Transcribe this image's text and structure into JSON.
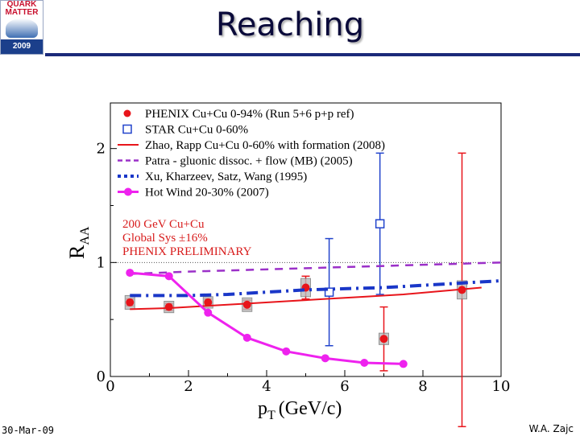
{
  "slide": {
    "title": "Reaching",
    "date": "30-Mar-09",
    "author": "W.A. Zajc",
    "logo": {
      "line1": "QUARK",
      "line2": "MATTER",
      "year": "2009"
    }
  },
  "chart_data": {
    "type": "scatter",
    "xlabel": "p",
    "xlabel_sub": "T",
    "xlabel_unit": "(GeV/c)",
    "ylabel": "R",
    "ylabel_sub": "AA",
    "xlim": [
      0,
      10
    ],
    "ylim": [
      0,
      2.4
    ],
    "xticks": [
      0,
      2,
      4,
      6,
      8,
      10
    ],
    "yticks": [
      0,
      1,
      2
    ],
    "reference_line": 1,
    "annotations": [
      "200 GeV Cu+Cu",
      "Global Sys  ±16%",
      "PHENIX PRELIMINARY"
    ],
    "series": [
      {
        "name": "PHENIX Cu+Cu 0-94% (Run 5+6 p+p ref)",
        "kind": "points",
        "marker": "filled-circle",
        "color": "#e8151b",
        "points": [
          {
            "x": 0.5,
            "y": 0.65,
            "err": 0.03,
            "sys": 0.06
          },
          {
            "x": 1.5,
            "y": 0.61,
            "err": 0.03,
            "sys": 0.05
          },
          {
            "x": 2.5,
            "y": 0.65,
            "err": 0.03,
            "sys": 0.05
          },
          {
            "x": 3.5,
            "y": 0.63,
            "err": 0.04,
            "sys": 0.06
          },
          {
            "x": 5.0,
            "y": 0.78,
            "err": 0.1,
            "sys": 0.08
          },
          {
            "x": 7.0,
            "y": 0.33,
            "err": 0.28,
            "sys": 0.05
          },
          {
            "x": 9.0,
            "y": 0.76,
            "err": 1.2,
            "sys": 0.08
          }
        ]
      },
      {
        "name": "STAR Cu+Cu 0-60%",
        "kind": "points",
        "marker": "open-square",
        "color": "#2244cc",
        "points": [
          {
            "x": 5.6,
            "y": 0.74,
            "err": 0.47
          },
          {
            "x": 6.9,
            "y": 1.34,
            "err": 0.62
          }
        ]
      },
      {
        "name": "Zhao, Rapp Cu+Cu 0-60% with formation (2008)",
        "kind": "line",
        "style": "solid",
        "color": "#e8151b",
        "x": [
          0.5,
          1.5,
          2.5,
          3.5,
          4.5,
          5.5,
          6.5,
          7.5,
          8.5,
          9.5
        ],
        "y": [
          0.59,
          0.6,
          0.62,
          0.64,
          0.66,
          0.68,
          0.7,
          0.72,
          0.75,
          0.78
        ]
      },
      {
        "name": "Patra - gluonic dissoc. + flow (MB) (2005)",
        "kind": "line",
        "style": "dashed",
        "color": "#9b30c8",
        "x": [
          0.5,
          2,
          4,
          6,
          8,
          10
        ],
        "y": [
          0.9,
          0.92,
          0.94,
          0.96,
          0.98,
          1.0
        ]
      },
      {
        "name": "Xu, Kharzeev, Satz, Wang (1995)",
        "kind": "line",
        "style": "dashdot",
        "color": "#1a37c8",
        "x": [
          0.5,
          2,
          3,
          4,
          5,
          6,
          7,
          8,
          9,
          10
        ],
        "y": [
          0.71,
          0.71,
          0.72,
          0.74,
          0.76,
          0.77,
          0.78,
          0.8,
          0.82,
          0.84
        ]
      },
      {
        "name": "Hot Wind 20-30% (2007)",
        "kind": "line-markers",
        "style": "solid",
        "color": "#ee22ee",
        "x": [
          0.5,
          1.5,
          2.5,
          3.5,
          4.5,
          5.5,
          6.5,
          7.5
        ],
        "y": [
          0.91,
          0.88,
          0.56,
          0.34,
          0.22,
          0.16,
          0.12,
          0.11
        ]
      }
    ]
  }
}
